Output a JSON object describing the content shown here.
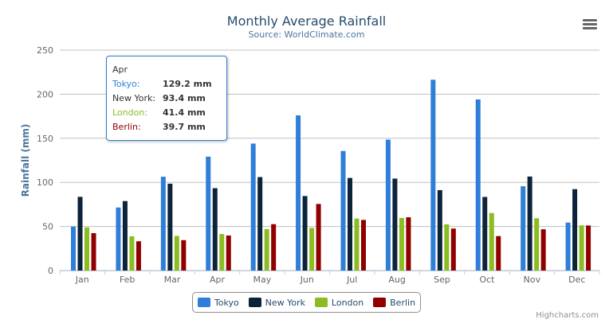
{
  "chart_data": {
    "type": "bar",
    "title": "Monthly Average Rainfall",
    "subtitle": "Source: WorldClimate.com",
    "xlabel": "",
    "ylabel": "Rainfall (mm)",
    "ylim": [
      0,
      250
    ],
    "yticks": [
      0,
      50,
      100,
      150,
      200,
      250
    ],
    "grid": true,
    "legend_placement": "bottom",
    "categories": [
      "Jan",
      "Feb",
      "Mar",
      "Apr",
      "May",
      "Jun",
      "Jul",
      "Aug",
      "Sep",
      "Oct",
      "Nov",
      "Dec"
    ],
    "series": [
      {
        "name": "Tokyo",
        "color": "#2f7ed8",
        "values": [
          49.9,
          71.5,
          106.4,
          129.2,
          144.0,
          176.0,
          135.6,
          148.5,
          216.4,
          194.1,
          95.6,
          54.4
        ]
      },
      {
        "name": "New York",
        "color": "#0d233a",
        "values": [
          83.6,
          78.8,
          98.5,
          93.4,
          106.0,
          84.5,
          105.0,
          104.3,
          91.2,
          83.5,
          106.6,
          92.3
        ]
      },
      {
        "name": "London",
        "color": "#8bbc21",
        "values": [
          48.9,
          38.8,
          39.3,
          41.4,
          47.0,
          48.3,
          59.0,
          59.6,
          52.4,
          65.2,
          59.3,
          51.2
        ]
      },
      {
        "name": "Berlin",
        "color": "#910000",
        "values": [
          42.4,
          33.2,
          34.5,
          39.7,
          52.6,
          75.5,
          57.4,
          60.4,
          47.6,
          39.1,
          46.8,
          51.1
        ]
      }
    ]
  },
  "tooltip": {
    "header": "Apr",
    "rows": [
      {
        "label": "Tokyo:",
        "value": "129.2 mm",
        "color": "#2f7ed8"
      },
      {
        "label": "New York:",
        "value": "93.4 mm",
        "color": "#000000"
      },
      {
        "label": "London:",
        "value": "41.4 mm",
        "color": "#8bbc21"
      },
      {
        "label": "Berlin:",
        "value": "39.7 mm",
        "color": "#910000"
      }
    ]
  },
  "credits": "Highcharts.com",
  "menu_icon": "hamburger-menu-icon"
}
